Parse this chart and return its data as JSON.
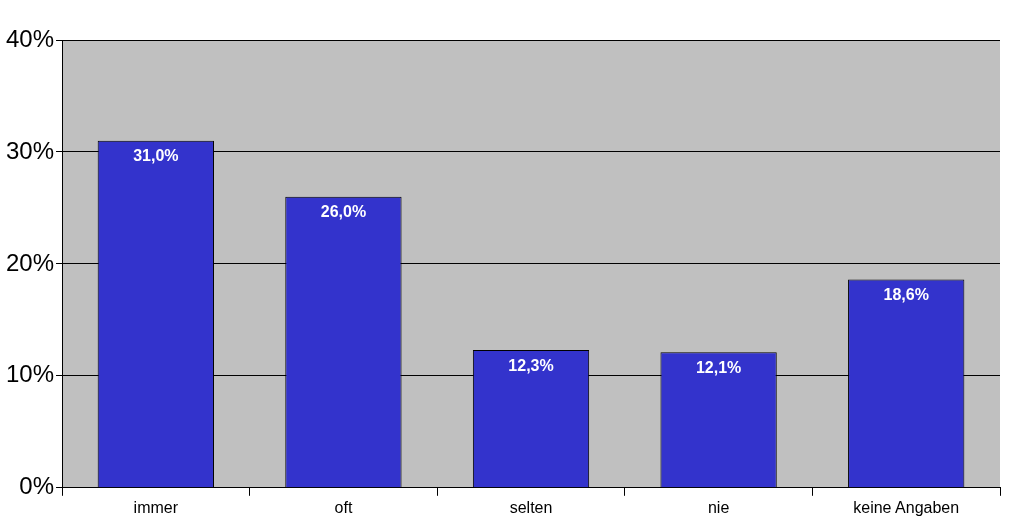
{
  "chart_data": {
    "type": "bar",
    "categories": [
      "immer",
      "oft",
      "selten",
      "nie",
      "keine Angaben"
    ],
    "values": [
      31.0,
      26.0,
      12.3,
      12.1,
      18.6
    ],
    "color": "#3333cc",
    "value_labels": [
      "31,0%",
      "26,0%",
      "12,3%",
      "12,1%",
      "18,6%"
    ],
    "ylim": [
      0,
      40
    ],
    "yticks": [
      {
        "value": 0,
        "label": "0%"
      },
      {
        "value": 10,
        "label": "10%"
      },
      {
        "value": 20,
        "label": "20%"
      },
      {
        "value": 30,
        "label": "30%"
      },
      {
        "value": 40,
        "label": "40%"
      }
    ],
    "grid": "y"
  }
}
